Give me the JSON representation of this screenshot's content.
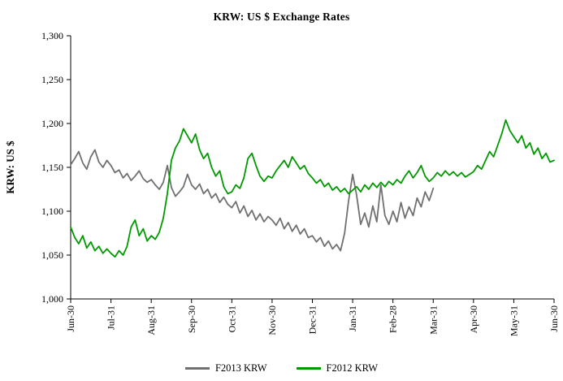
{
  "chart_data": {
    "type": "line",
    "title": "KRW: US $ Exchange Rates",
    "xlabel": "",
    "ylabel": "KRW: US $",
    "ylim": [
      1000,
      1300
    ],
    "x_range": [
      0,
      12
    ],
    "grid": false,
    "legend_position": "bottom",
    "y_ticks": [
      1000,
      1050,
      1100,
      1150,
      1200,
      1250,
      1300
    ],
    "y_tick_labels": [
      "1,000",
      "1,050",
      "1,100",
      "1,150",
      "1,200",
      "1,250",
      "1,300"
    ],
    "x_tick_labels": [
      "Jun-30",
      "Jul-31",
      "Aug-31",
      "Sep-30",
      "Oct-31",
      "Nov-30",
      "Dec-31",
      "Jan-31",
      "Feb-28",
      "Mar-31",
      "Apr-30",
      "May-31",
      "Jun-30"
    ],
    "series": [
      {
        "name": "F2013 KRW",
        "color": "#707070",
        "x_start": 0,
        "x_step": 0.1,
        "values": [
          1153,
          1160,
          1168,
          1155,
          1148,
          1162,
          1170,
          1156,
          1150,
          1158,
          1152,
          1144,
          1147,
          1138,
          1143,
          1135,
          1140,
          1146,
          1137,
          1133,
          1136,
          1130,
          1125,
          1133,
          1152,
          1127,
          1117,
          1122,
          1128,
          1142,
          1130,
          1125,
          1131,
          1120,
          1125,
          1115,
          1120,
          1110,
          1116,
          1108,
          1104,
          1111,
          1098,
          1106,
          1094,
          1101,
          1090,
          1097,
          1088,
          1094,
          1090,
          1084,
          1092,
          1080,
          1087,
          1077,
          1084,
          1074,
          1080,
          1070,
          1072,
          1065,
          1070,
          1060,
          1066,
          1057,
          1062,
          1055,
          1075,
          1112,
          1142,
          1118,
          1085,
          1098,
          1082,
          1106,
          1088,
          1130,
          1095,
          1085,
          1100,
          1088,
          1110,
          1092,
          1105,
          1095,
          1115,
          1105,
          1122,
          1112,
          1126
        ]
      },
      {
        "name": "F2012 KRW",
        "color": "#009900",
        "x_start": 0,
        "x_step": 0.1,
        "values": [
          1082,
          1070,
          1063,
          1072,
          1058,
          1065,
          1055,
          1060,
          1052,
          1057,
          1052,
          1048,
          1055,
          1050,
          1060,
          1082,
          1090,
          1072,
          1080,
          1066,
          1072,
          1068,
          1076,
          1092,
          1120,
          1158,
          1172,
          1180,
          1194,
          1186,
          1178,
          1188,
          1170,
          1160,
          1166,
          1150,
          1140,
          1146,
          1128,
          1120,
          1122,
          1130,
          1126,
          1138,
          1160,
          1166,
          1152,
          1140,
          1134,
          1140,
          1138,
          1146,
          1152,
          1158,
          1150,
          1162,
          1155,
          1148,
          1152,
          1143,
          1138,
          1132,
          1136,
          1128,
          1132,
          1124,
          1128,
          1122,
          1126,
          1120,
          1124,
          1128,
          1122,
          1130,
          1125,
          1132,
          1127,
          1133,
          1128,
          1134,
          1130,
          1136,
          1132,
          1140,
          1146,
          1138,
          1144,
          1152,
          1140,
          1134,
          1138,
          1144,
          1140,
          1146,
          1141,
          1145,
          1140,
          1144,
          1139,
          1142,
          1145,
          1152,
          1148,
          1158,
          1168,
          1162,
          1175,
          1188,
          1204,
          1192,
          1185,
          1178,
          1186,
          1172,
          1178,
          1165,
          1172,
          1160,
          1166,
          1156,
          1158
        ]
      }
    ]
  }
}
